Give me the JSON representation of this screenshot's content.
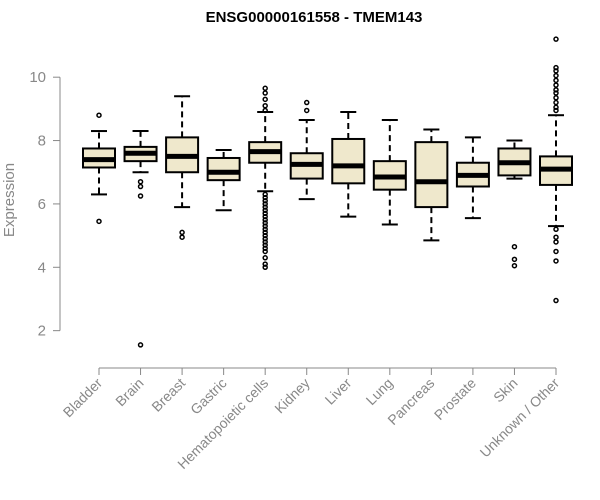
{
  "chart_data": {
    "type": "box",
    "title": "ENSG00000161558 - TMEM143",
    "ylabel": "Expression",
    "xlabel": "",
    "ylim": [
      1.2,
      11.3
    ],
    "yticks": [
      2,
      4,
      6,
      8,
      10
    ],
    "box_fill": "#efe8cc",
    "grid": false,
    "categories": [
      "Bladder",
      "Brain",
      "Breast",
      "Gastric",
      "Hematopoietic cells",
      "Kidney",
      "Liver",
      "Lung",
      "Pancreas",
      "Prostate",
      "Skin",
      "Unknown / Other"
    ],
    "boxes": [
      {
        "category": "Bladder",
        "whisker_low": 6.3,
        "q1": 7.15,
        "median": 7.4,
        "q3": 7.75,
        "whisker_high": 8.3,
        "outliers": [
          8.8,
          5.45
        ]
      },
      {
        "category": "Brain",
        "whisker_low": 7.0,
        "q1": 7.35,
        "median": 7.6,
        "q3": 7.8,
        "whisker_high": 8.3,
        "outliers": [
          6.7,
          6.55,
          6.25,
          1.55
        ]
      },
      {
        "category": "Breast",
        "whisker_low": 5.9,
        "q1": 7.0,
        "median": 7.5,
        "q3": 8.1,
        "whisker_high": 9.4,
        "outliers": [
          5.1,
          4.95
        ]
      },
      {
        "category": "Gastric",
        "whisker_low": 5.8,
        "q1": 6.75,
        "median": 7.0,
        "q3": 7.45,
        "whisker_high": 7.7,
        "outliers": []
      },
      {
        "category": "Hematopoietic cells",
        "whisker_low": 6.4,
        "q1": 7.3,
        "median": 7.65,
        "q3": 7.95,
        "whisker_high": 8.9,
        "outliers": [
          9.65,
          9.5,
          9.3,
          9.1,
          8.95,
          6.3,
          6.2,
          6.1,
          6.0,
          5.9,
          5.8,
          5.7,
          5.6,
          5.5,
          5.4,
          5.3,
          5.2,
          5.1,
          5.0,
          4.9,
          4.8,
          4.7,
          4.6,
          4.5,
          4.3,
          4.1,
          4.0
        ]
      },
      {
        "category": "Kidney",
        "whisker_low": 6.15,
        "q1": 6.8,
        "median": 7.25,
        "q3": 7.6,
        "whisker_high": 8.65,
        "outliers": [
          9.2,
          8.95
        ]
      },
      {
        "category": "Liver",
        "whisker_low": 5.6,
        "q1": 6.65,
        "median": 7.2,
        "q3": 8.05,
        "whisker_high": 8.9,
        "outliers": []
      },
      {
        "category": "Lung",
        "whisker_low": 5.35,
        "q1": 6.45,
        "median": 6.85,
        "q3": 7.35,
        "whisker_high": 8.65,
        "outliers": []
      },
      {
        "category": "Pancreas",
        "whisker_low": 4.85,
        "q1": 5.9,
        "median": 6.7,
        "q3": 7.95,
        "whisker_high": 8.35,
        "outliers": []
      },
      {
        "category": "Prostate",
        "whisker_low": 5.55,
        "q1": 6.55,
        "median": 6.9,
        "q3": 7.3,
        "whisker_high": 8.1,
        "outliers": []
      },
      {
        "category": "Skin",
        "whisker_low": 6.8,
        "q1": 6.9,
        "median": 7.3,
        "q3": 7.75,
        "whisker_high": 8.0,
        "outliers": [
          4.65,
          4.25,
          4.05
        ]
      },
      {
        "category": "Unknown / Other",
        "whisker_low": 5.3,
        "q1": 6.6,
        "median": 7.1,
        "q3": 7.5,
        "whisker_high": 8.8,
        "outliers": [
          11.2,
          10.3,
          10.2,
          10.05,
          9.9,
          9.75,
          9.6,
          9.5,
          9.35,
          9.2,
          9.05,
          8.95,
          5.2,
          4.95,
          4.8,
          4.5,
          4.2,
          2.95
        ]
      }
    ]
  }
}
